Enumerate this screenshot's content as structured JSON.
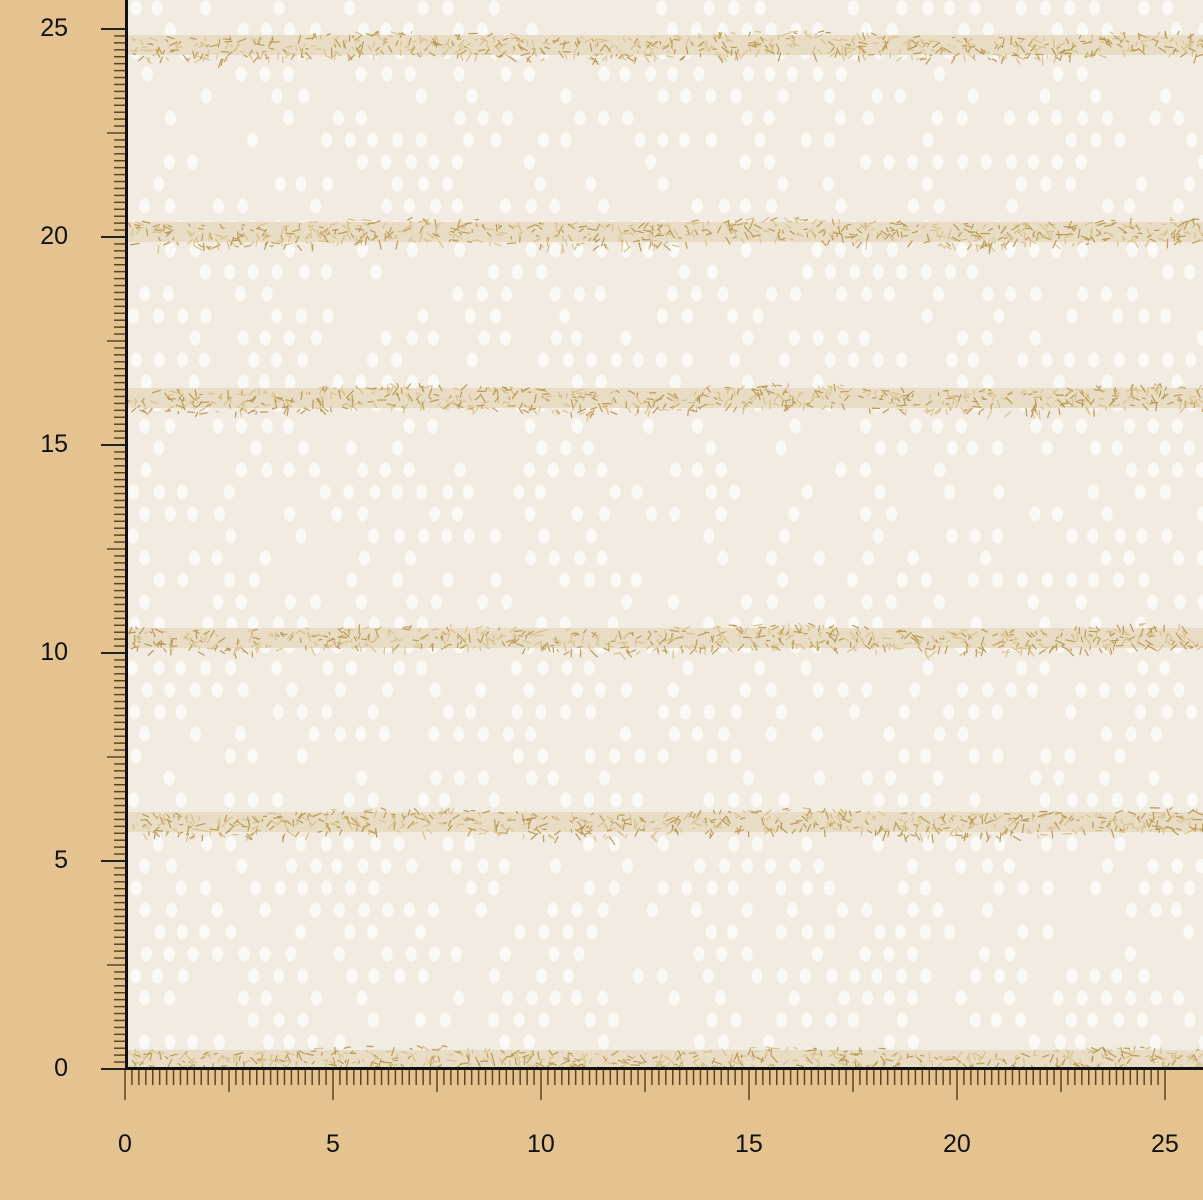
{
  "image": {
    "subject": "cream knit lace fabric with gold metallic stripes",
    "colors": {
      "background": "#e5c391",
      "fabric": "#f2ebe1",
      "stripe": "#c9ad6e",
      "ruler_ticks": "#5a4520"
    }
  },
  "vertical_ruler": {
    "labels": [
      "0",
      "5",
      "10",
      "15",
      "20",
      "25"
    ]
  },
  "horizontal_ruler": {
    "labels": [
      "0",
      "5",
      "10",
      "15",
      "20",
      "25"
    ]
  }
}
